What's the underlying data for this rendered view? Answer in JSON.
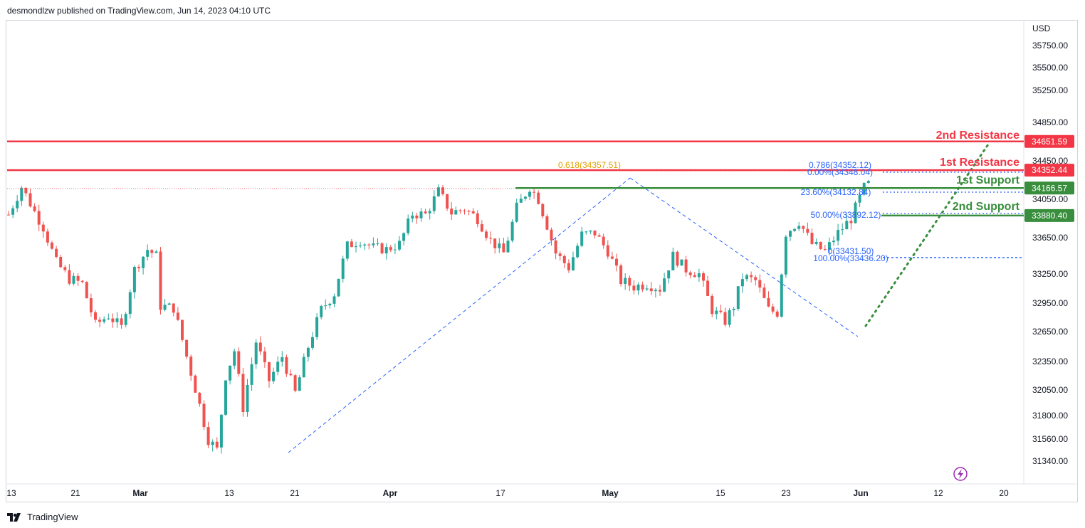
{
  "header": {
    "published_by": "desmondlzw published on TradingView.com, Jun 14, 2023 04:10 UTC"
  },
  "footer": {
    "brand": "TradingView"
  },
  "colors": {
    "resistance": "#f23645",
    "support": "#388e3c",
    "fib_blue": "#2962ff",
    "fib_gold": "#e0a100",
    "candle_up": "#26a69a",
    "candle_down": "#ef5350"
  },
  "chart_data": {
    "type": "candlestick",
    "symbol_currency": "USD",
    "x_tick_labels": [
      "13",
      "21",
      "Mar",
      "13",
      "21",
      "Apr",
      "17",
      "May",
      "15",
      "23",
      "Jun",
      "12",
      "20"
    ],
    "y_tick_labels": [
      "35750.00",
      "35500.00",
      "35250.00",
      "34850.00",
      "34450.00",
      "34050.00",
      "33650.00",
      "33250.00",
      "32950.00",
      "32650.00",
      "32350.00",
      "32050.00",
      "31800.00",
      "31560.00",
      "31340.00"
    ],
    "levels": [
      {
        "name": "2nd Resistance",
        "value": 34651.59,
        "label": "34651.59",
        "kind": "resistance"
      },
      {
        "name": "1st Resistance",
        "value": 34352.44,
        "label": "34352.44",
        "kind": "resistance"
      },
      {
        "name": "1st Support",
        "value": 34166.57,
        "label": "34166.57",
        "kind": "support"
      },
      {
        "name": "2nd Support",
        "value": 33880.4,
        "label": "33880.40",
        "kind": "support"
      }
    ],
    "fib_labels": [
      {
        "text": "0.618(34357.51)",
        "color": "gold"
      },
      {
        "text": "0.786(34352.12)",
        "color": "blue"
      },
      {
        "text": "0.00%(34348.04)",
        "color": "blue"
      },
      {
        "text": "23.60%(34132.84)",
        "color": "blue"
      },
      {
        "text": "50.00%(33892.12)",
        "color": "blue"
      },
      {
        "text": "0(33431.50)",
        "color": "blue"
      },
      {
        "text": "100.00%(33436.20)",
        "color": "blue"
      }
    ],
    "price_path": [
      [
        0,
        33890
      ],
      [
        3,
        34180
      ],
      [
        6,
        33920
      ],
      [
        8,
        33760
      ],
      [
        11,
        33380
      ],
      [
        14,
        33200
      ],
      [
        17,
        33150
      ],
      [
        20,
        32720
      ],
      [
        23,
        32820
      ],
      [
        26,
        32690
      ],
      [
        29,
        33300
      ],
      [
        32,
        33520
      ],
      [
        34,
        33450
      ],
      [
        35,
        32920
      ],
      [
        38,
        32900
      ],
      [
        41,
        32400
      ],
      [
        44,
        31900
      ],
      [
        46,
        31560
      ],
      [
        48,
        31450
      ],
      [
        50,
        32200
      ],
      [
        52,
        32460
      ],
      [
        54,
        31880
      ],
      [
        57,
        32550
      ],
      [
        60,
        32150
      ],
      [
        63,
        32400
      ],
      [
        66,
        32020
      ],
      [
        69,
        32500
      ],
      [
        72,
        32880
      ],
      [
        75,
        33050
      ],
      [
        78,
        33560
      ],
      [
        81,
        33620
      ],
      [
        84,
        33540
      ],
      [
        87,
        33520
      ],
      [
        90,
        33580
      ],
      [
        93,
        33900
      ],
      [
        96,
        33890
      ],
      [
        99,
        34130
      ],
      [
        102,
        33910
      ],
      [
        105,
        33950
      ],
      [
        108,
        33850
      ],
      [
        111,
        33620
      ],
      [
        114,
        33480
      ],
      [
        117,
        33960
      ],
      [
        120,
        34180
      ],
      [
        122,
        34050
      ],
      [
        124,
        33780
      ],
      [
        126,
        33480
      ],
      [
        129,
        33320
      ],
      [
        132,
        33680
      ],
      [
        135,
        33700
      ],
      [
        138,
        33500
      ],
      [
        141,
        33180
      ],
      [
        144,
        33120
      ],
      [
        147,
        33150
      ],
      [
        150,
        33100
      ],
      [
        153,
        33450
      ],
      [
        156,
        33300
      ],
      [
        159,
        33250
      ],
      [
        162,
        32880
      ],
      [
        165,
        32760
      ],
      [
        167,
        32920
      ],
      [
        169,
        33220
      ],
      [
        172,
        33180
      ],
      [
        175,
        32880
      ],
      [
        177,
        32850
      ],
      [
        179,
        33700
      ],
      [
        182,
        33820
      ],
      [
        185,
        33580
      ],
      [
        188,
        33500
      ],
      [
        191,
        33700
      ],
      [
        194,
        33850
      ],
      [
        197,
        34170
      ],
      [
        199,
        34240
      ]
    ]
  }
}
